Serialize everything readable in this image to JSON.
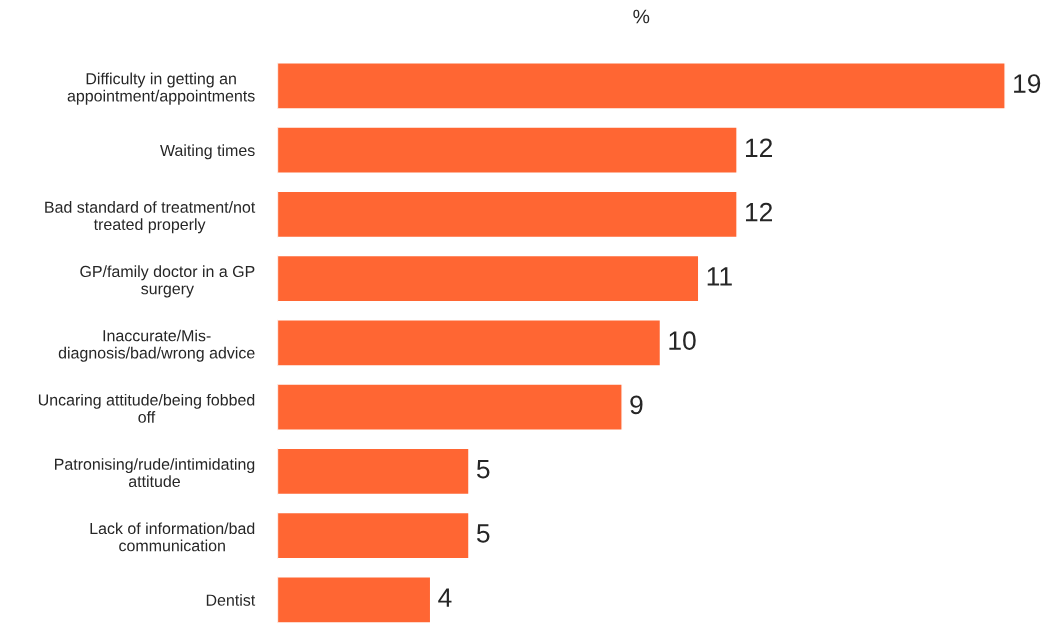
{
  "chart_data": {
    "type": "bar",
    "orientation": "horizontal",
    "subtitle": "%",
    "categories": [
      "Difficulty in getting an appointment/appointments",
      "Waiting times",
      "Bad standard of treatment/not treated properly",
      "GP/family doctor in a GP surgery",
      "Inaccurate/Mis-diagnosis/bad/wrong advice",
      "Uncaring attitude/being fobbed off",
      "Patronising/rude/intimidating attitude",
      "Lack of information/bad communication",
      "Dentist"
    ],
    "values": [
      19,
      12,
      12,
      11,
      10,
      9,
      5,
      5,
      4
    ],
    "color": "#ff6633",
    "data_labels": true,
    "grid": false,
    "legend": false
  }
}
